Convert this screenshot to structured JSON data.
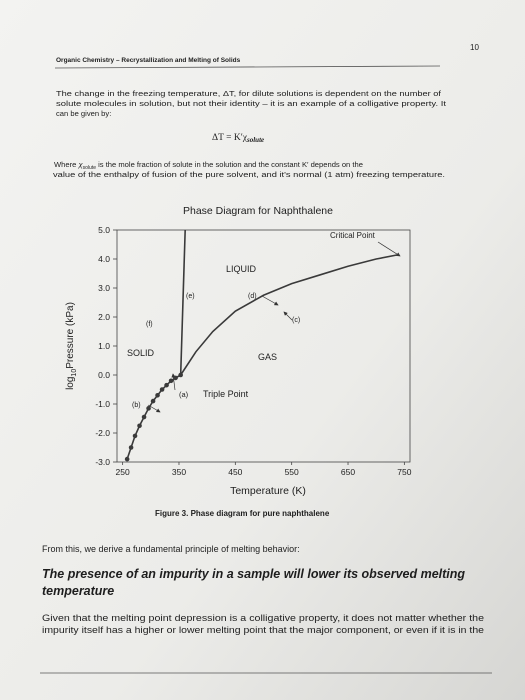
{
  "page_number": "10",
  "header": "Organic Chemistry – Recrystallization and Melting of Solids",
  "intro": {
    "lines": [
      "The change in the freezing temperature, ΔT, for dilute solutions is dependent on the number of",
      "solute molecules in solution, but not their identity – it is an example of a colligative property.  It",
      "can be given by:"
    ]
  },
  "formula": {
    "main": "ΔT = K′χ",
    "sub": "solute"
  },
  "definition": {
    "lead": "Where ",
    "symbol": "χ",
    "sub": "solute",
    "lines": [
      " is the mole fraction of solute in the solution and the constant K′ depends on the",
      "value of the enthalpy of fusion of the pure solvent, and it's normal (1 atm) freezing temperature."
    ]
  },
  "chart_data": {
    "type": "line",
    "title": "Phase Diagram for Naphthalene",
    "xlabel": "Temperature (K)",
    "ylabel": {
      "base": "log",
      "sub": "10",
      "rest": "Pressure (kPa)"
    },
    "xlim": [
      240,
      760
    ],
    "xticks": [
      250,
      350,
      450,
      550,
      650,
      750
    ],
    "ylim": [
      -3,
      5
    ],
    "yticks": [
      {
        "value": 5,
        "label": "5.0"
      },
      {
        "value": 4,
        "label": "4.0"
      },
      {
        "value": 3,
        "label": "3.0"
      },
      {
        "value": 2,
        "label": "2.0"
      },
      {
        "value": 1,
        "label": "1.0"
      },
      {
        "value": 0,
        "label": "0.0"
      },
      {
        "value": -1,
        "label": "-1.0"
      },
      {
        "value": -2,
        "label": "-2.0"
      },
      {
        "value": -3,
        "label": "-3.0"
      }
    ],
    "grid": false,
    "series": [
      {
        "x": [
          258,
          265,
          272,
          280,
          288,
          296,
          304,
          312,
          320,
          328,
          336,
          344,
          353
        ],
        "values": [
          -2.9,
          -2.5,
          -2.1,
          -1.75,
          -1.45,
          -1.15,
          -0.9,
          -0.7,
          -0.5,
          -0.35,
          -0.2,
          -0.1,
          0.0
        ],
        "color": "#3a3a3a",
        "markers": true
      },
      {
        "x": [
          353,
          380,
          410,
          450,
          500,
          550,
          600,
          650,
          700,
          740
        ],
        "values": [
          0.0,
          0.8,
          1.5,
          2.2,
          2.75,
          3.15,
          3.45,
          3.75,
          4.0,
          4.15
        ],
        "color": "#3a3a3a",
        "markers": false
      },
      {
        "x": [
          353,
          357,
          361
        ],
        "values": [
          0.0,
          2.5,
          5.0
        ],
        "color": "#3a3a3a",
        "markers": false
      }
    ],
    "annotations": [
      "Critical Point",
      "LIQUID",
      "(e)",
      "(d)",
      "(c)",
      "(f)",
      "SOLID",
      "GAS",
      "(a)",
      "Triple Point",
      "(b)"
    ]
  },
  "caption": "Figure 3.  Phase diagram for pure naphthalene",
  "lead_in": "From this, we derive a fundamental principle of melting behavior:",
  "principle": {
    "lines": [
      "The presence of an impurity in a sample will lower its observed melting",
      "temperature"
    ]
  },
  "closing": {
    "lines": [
      "Given that the melting point depression is a colligative property, it does not matter whether the",
      "impurity itself has a higher or lower melting point that the major component, or even if it is in the"
    ]
  }
}
